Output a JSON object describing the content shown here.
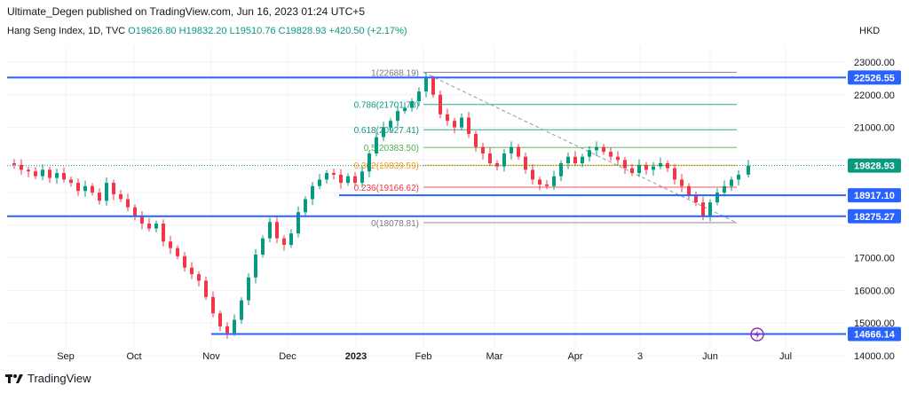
{
  "publisher": "Ultimate_Degen published on TradingView.com, Jun 16, 2023 01:24 UTC+5",
  "legend": {
    "symbol": "Hang Seng Index, 1D, TVC",
    "open": "O19626.80",
    "high": "H19832.20",
    "low": "L19510.76",
    "close": "C19828.93",
    "change": "+420.50 (+2.17%)"
  },
  "currency": "HKD",
  "footer": {
    "brand": "TradingView",
    "logo": "tradingview-logo-icon"
  },
  "colors": {
    "up": "#089981",
    "down": "#f23645",
    "line": "#2962ff",
    "last": "#089981"
  },
  "chart_data": {
    "type": "candlestick",
    "ylim": [
      13700,
      23350
    ],
    "y_ticks": [
      14000,
      15000,
      16000,
      17000,
      18000,
      19000,
      20000,
      21000,
      22000,
      23000
    ],
    "y_tick_labels": [
      "14000.00",
      "15000.00",
      "16000.00",
      "17000.00",
      "18000.00",
      "19000.00",
      "20000.00",
      "21000.00",
      "22000.00",
      "23000.00"
    ],
    "x_labels": [
      "Sep",
      "Oct",
      "Nov",
      "Dec",
      "2023",
      "Feb",
      "Mar",
      "Apr",
      "3",
      "Jun",
      "Jul"
    ],
    "x_label_days": [
      66,
      143,
      230,
      316,
      393,
      469,
      549,
      640,
      713,
      792,
      877
    ],
    "last_day": 835,
    "horizontal_lines": [
      {
        "value": 22526.55,
        "label": "22526.55",
        "from_day": 0
      },
      {
        "value": 18917.1,
        "label": "18917.10",
        "from_day": 374
      },
      {
        "value": 18275.27,
        "label": "18275.27",
        "from_day": 0
      },
      {
        "value": 14666.14,
        "label": "14666.14",
        "from_day": 230
      }
    ],
    "last_price": {
      "value": 19828.93,
      "label": "19828.93"
    },
    "fibonacci": [
      {
        "label": "1(22688.19)",
        "value": 22688.19,
        "color": "#787b86"
      },
      {
        "label": "0.786(21701.78)",
        "value": 21701.78,
        "color": "#089981"
      },
      {
        "label": "0.618(20927.41)",
        "value": 20927.41,
        "color": "#089981"
      },
      {
        "label": "0.5(20383.50)",
        "value": 20383.5,
        "color": "#4caf50"
      },
      {
        "label": "0.382(19839.59)",
        "value": 19839.59,
        "color": "#ff9800"
      },
      {
        "label": "0.236(19166.62)",
        "value": 19166.62,
        "color": "#f23645"
      },
      {
        "label": "0(18078.81)",
        "value": 18078.81,
        "color": "#787b86"
      }
    ],
    "fib_range": {
      "from_day": 469,
      "to_day": 822
    },
    "trendline": {
      "from": [
        469,
        22688
      ],
      "to": [
        822,
        18078
      ]
    },
    "closes": [
      [
        0,
        19900
      ],
      [
        8,
        19850
      ],
      [
        16,
        19700
      ],
      [
        24,
        19650
      ],
      [
        32,
        19500
      ],
      [
        40,
        19700
      ],
      [
        48,
        19450
      ],
      [
        56,
        19600
      ],
      [
        64,
        19400
      ],
      [
        72,
        19300
      ],
      [
        80,
        19050
      ],
      [
        88,
        19200
      ],
      [
        96,
        19000
      ],
      [
        104,
        18750
      ],
      [
        112,
        19300
      ],
      [
        120,
        18950
      ],
      [
        128,
        18800
      ],
      [
        136,
        18550
      ],
      [
        144,
        18300
      ],
      [
        152,
        18050
      ],
      [
        160,
        17900
      ],
      [
        168,
        18050
      ],
      [
        176,
        17500
      ],
      [
        184,
        17300
      ],
      [
        192,
        17050
      ],
      [
        200,
        16700
      ],
      [
        208,
        16500
      ],
      [
        216,
        16300
      ],
      [
        224,
        15800
      ],
      [
        232,
        15300
      ],
      [
        240,
        14900
      ],
      [
        248,
        14700
      ],
      [
        256,
        15100
      ],
      [
        264,
        15700
      ],
      [
        272,
        16400
      ],
      [
        280,
        17100
      ],
      [
        288,
        17600
      ],
      [
        296,
        18100
      ],
      [
        304,
        17600
      ],
      [
        312,
        17400
      ],
      [
        320,
        17750
      ],
      [
        328,
        18400
      ],
      [
        336,
        18800
      ],
      [
        344,
        19200
      ],
      [
        352,
        19400
      ],
      [
        360,
        19600
      ],
      [
        368,
        19550
      ],
      [
        376,
        19300
      ],
      [
        384,
        19500
      ],
      [
        392,
        19300
      ],
      [
        400,
        19650
      ],
      [
        408,
        20200
      ],
      [
        416,
        20700
      ],
      [
        424,
        21000
      ],
      [
        432,
        21200
      ],
      [
        440,
        21500
      ],
      [
        448,
        21600
      ],
      [
        456,
        21800
      ],
      [
        464,
        22100
      ],
      [
        472,
        22500
      ],
      [
        480,
        22000
      ],
      [
        488,
        21400
      ],
      [
        496,
        21200
      ],
      [
        504,
        21000
      ],
      [
        512,
        21300
      ],
      [
        520,
        20800
      ],
      [
        528,
        20400
      ],
      [
        536,
        20200
      ],
      [
        544,
        19900
      ],
      [
        552,
        19800
      ],
      [
        560,
        20200
      ],
      [
        568,
        20400
      ],
      [
        576,
        20100
      ],
      [
        584,
        19700
      ],
      [
        592,
        19400
      ],
      [
        600,
        19250
      ],
      [
        608,
        19200
      ],
      [
        616,
        19500
      ],
      [
        624,
        19900
      ],
      [
        632,
        20100
      ],
      [
        640,
        19900
      ],
      [
        648,
        20100
      ],
      [
        656,
        20300
      ],
      [
        664,
        20400
      ],
      [
        672,
        20250
      ],
      [
        680,
        20100
      ],
      [
        688,
        20000
      ],
      [
        696,
        19750
      ],
      [
        704,
        19600
      ],
      [
        712,
        19850
      ],
      [
        720,
        19700
      ],
      [
        728,
        19800
      ],
      [
        736,
        19900
      ],
      [
        744,
        19750
      ],
      [
        752,
        19400
      ],
      [
        760,
        19200
      ],
      [
        768,
        18900
      ],
      [
        776,
        18700
      ],
      [
        784,
        18300
      ],
      [
        792,
        18700
      ],
      [
        800,
        19000
      ],
      [
        808,
        19200
      ],
      [
        816,
        19400
      ],
      [
        824,
        19550
      ],
      [
        835,
        19828.93
      ]
    ]
  }
}
